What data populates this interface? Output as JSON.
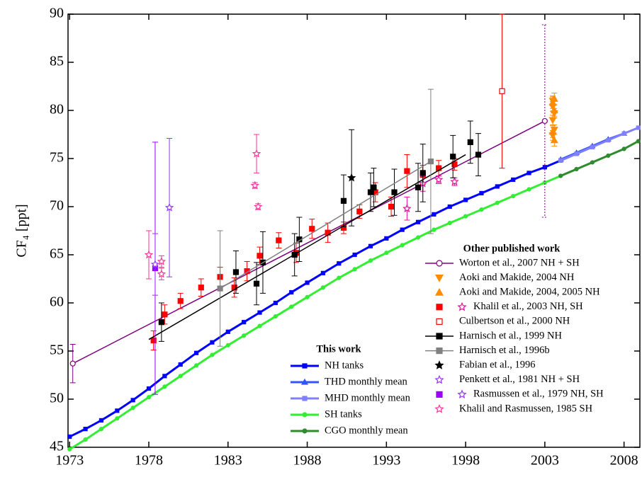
{
  "chart_data": {
    "type": "scatter",
    "ylabel": "CF₄ [ppt]",
    "xlim": [
      1972.9,
      2009.0
    ],
    "ylim": [
      45,
      90
    ],
    "xticks": [
      1973,
      1978,
      1983,
      1988,
      1993,
      1998,
      2003,
      2008
    ],
    "yticks": [
      45,
      50,
      55,
      60,
      65,
      70,
      75,
      80,
      85,
      90
    ],
    "groups": [
      {
        "title": "This work",
        "series": [
          {
            "name": "NH tanks",
            "color": "#0000ff",
            "marker": "square",
            "line": true,
            "x": [
              1973,
              1974,
              1975,
              1976,
              1977,
              1978,
              1979,
              1980,
              1981,
              1982,
              1983,
              1984,
              1985,
              1986,
              1987,
              1988,
              1989,
              1990,
              1991,
              1992,
              1993,
              1994,
              1995,
              1996,
              1997,
              1998,
              1999,
              2000,
              2001,
              2002,
              2003,
              2004,
              2005,
              2006
            ],
            "y": [
              46.1,
              46.9,
              47.8,
              48.8,
              49.9,
              51.1,
              52.4,
              53.6,
              54.8,
              55.9,
              57.0,
              58.0,
              59.0,
              60.0,
              61.1,
              62.1,
              63.1,
              64.1,
              65.0,
              65.9,
              66.7,
              67.6,
              68.4,
              69.2,
              70.0,
              70.7,
              71.4,
              72.1,
              72.8,
              73.5,
              74.1,
              74.8,
              75.5,
              76.2
            ]
          },
          {
            "name": "THD monthly mean",
            "color": "#3355ff",
            "marker": "triangle-up",
            "line": true,
            "x": [
              2004,
              2005,
              2006,
              2007,
              2008
            ],
            "y": [
              74.9,
              75.6,
              76.3,
              77.0,
              77.6
            ]
          },
          {
            "name": "MHD monthly mean",
            "color": "#8080ff",
            "marker": "square",
            "line": true,
            "x": [
              2004,
              2005,
              2006,
              2007,
              2008,
              2008.9
            ],
            "y": [
              74.8,
              75.5,
              76.2,
              76.9,
              77.6,
              78.2
            ]
          },
          {
            "name": "SH tanks",
            "color": "#33ee33",
            "marker": "circle",
            "line": true,
            "x": [
              1973,
              1974,
              1975,
              1976,
              1977,
              1978,
              1979,
              1980,
              1981,
              1982,
              1983,
              1984,
              1985,
              1986,
              1987,
              1988,
              1989,
              1990,
              1991,
              1992,
              1993,
              1994,
              1995,
              1996,
              1997,
              1998,
              1999,
              2000,
              2001,
              2002,
              2003,
              2004,
              2005
            ],
            "y": [
              44.8,
              45.8,
              46.9,
              48.0,
              49.1,
              50.2,
              51.3,
              52.4,
              53.5,
              54.6,
              55.6,
              56.6,
              57.6,
              58.6,
              59.6,
              60.6,
              61.6,
              62.6,
              63.5,
              64.4,
              65.2,
              66.0,
              66.8,
              67.6,
              68.3,
              69.0,
              69.7,
              70.4,
              71.1,
              71.8,
              72.5,
              73.2,
              73.9
            ]
          },
          {
            "name": "CGO monthly mean",
            "color": "#2e8b2e",
            "marker": "circle",
            "line": true,
            "x": [
              2004,
              2005,
              2006,
              2007,
              2008,
              2008.9
            ],
            "y": [
              73.2,
              73.9,
              74.6,
              75.3,
              76.0,
              76.8
            ]
          }
        ]
      },
      {
        "title": "Other published work",
        "series": [
          {
            "name": "Worton et al., 2007 NH + SH",
            "color": "#800080",
            "marker": "open-circle",
            "line": true,
            "x": [
              1973.2,
              2003.0
            ],
            "y": [
              53.7,
              78.9
            ],
            "err": [
              2,
              10
            ]
          },
          {
            "name": "Aoki and Makide, 2004 NH",
            "color": "#ff8c00",
            "marker": "triangle-down",
            "x": [
              2003.5,
              2003.5,
              2003.6,
              2003.5,
              2003.6,
              2003.5
            ],
            "y": [
              81.0,
              80.4,
              79.7,
              79.0,
              78.0,
              77.4
            ],
            "err": [
              0.5,
              0.5,
              0.5,
              0.5,
              0.5,
              0.5
            ]
          },
          {
            "name": "Aoki and Makide, 2004, 2005 NH",
            "color": "#ff8c00",
            "marker": "triangle-up",
            "x": [
              2003.6,
              2003.5,
              2003.6,
              2003.5,
              2003.6
            ],
            "y": [
              81.2,
              80.8,
              80.0,
              77.8,
              76.9
            ],
            "err": [
              0.6,
              0.6,
              0.6,
              0.6,
              0.6
            ]
          },
          {
            "name": "Khalil et al., 2003 NH, SH",
            "color": "#ff0000",
            "marker": "square",
            "x": [
              1978.3,
              1979.0,
              1980.0,
              1981.3,
              1982.5,
              1983.4,
              1984.2,
              1985.0,
              1986.2,
              1987.3,
              1988.3,
              1989.3,
              1990.3,
              1991.3,
              1992.3,
              1993.3,
              1994.3,
              1995.3,
              1996.3,
              1997.3
            ],
            "y": [
              56.1,
              58.8,
              60.2,
              61.6,
              62.7,
              61.6,
              63.3,
              64.9,
              66.5,
              65.2,
              67.7,
              67.3,
              67.8,
              69.5,
              71.5,
              70.0,
              73.7,
              73.3,
              74.0,
              74.4
            ],
            "err": [
              1,
              1,
              0.8,
              0.9,
              1,
              1,
              1,
              0.9,
              0.8,
              1,
              1,
              1,
              0.6,
              0.7,
              1,
              1,
              1.7,
              1,
              0.8,
              0.6
            ]
          },
          {
            "color": "#e0109a",
            "marker": "open-star",
            "x": [
              1994.3,
              1995.3,
              1996.3,
              1997.3
            ],
            "y": [
              69.8,
              72.4,
              72.8,
              72.6
            ],
            "err": [
              1.2,
              0.8,
              0.4,
              0.4
            ]
          },
          {
            "name": "Culbertson et al., 2000 NH",
            "color": "#ff0000",
            "marker": "open-square",
            "x": [
              2000.3
            ],
            "y": [
              82.0
            ],
            "err": [
              8
            ]
          },
          {
            "name": "Harnisch et al., 1999 NH",
            "color": "#000000",
            "marker": "square",
            "x": [
              1978.8,
              1983.5,
              1984.8,
              1985.2,
              1987.2,
              1987.5,
              1990.3,
              1992.0,
              1992.2,
              1993.5,
              1995.0,
              1995.3,
              1997.2,
              1998.3,
              1998.8
            ],
            "y": [
              58.0,
              63.2,
              62.0,
              64.2,
              65.0,
              66.6,
              70.6,
              71.5,
              72.0,
              71.5,
              72.0,
              73.5,
              75.2,
              76.7,
              75.4
            ],
            "err": [
              2,
              2.2,
              2.2,
              3.2,
              2.2,
              2.3,
              2.7,
              2,
              2,
              2.4,
              2.5,
              3,
              2.2,
              2.2,
              2.2
            ],
            "fit_x": [
              1978.0,
              1998.0
            ],
            "fit_y": [
              56.2,
              75.4
            ]
          },
          {
            "name": "Harnisch et al., 1996b",
            "color": "#808080",
            "marker": "square",
            "x": [
              1982.5,
              1995.8
            ],
            "y": [
              61.5,
              74.7
            ],
            "err": [
              6,
              7.5
            ],
            "fit_x": [
              1982.5,
              1995.8
            ],
            "fit_y": [
              61.5,
              74.7
            ]
          },
          {
            "name": "Fabian et al., 1996",
            "color": "#000000",
            "marker": "star",
            "x": [
              1990.8
            ],
            "y": [
              73.0
            ],
            "err": [
              5
            ]
          },
          {
            "name": "Penkett et al., 1981 NH + SH",
            "color": "#9933ff",
            "marker": "open-star",
            "x": [
              1979.3
            ],
            "y": [
              69.9
            ],
            "err": [
              7.2
            ]
          },
          {
            "name": "Rasmussen et al., 1979 NH, SH",
            "color": "#9900ff",
            "marker": "square",
            "x": [
              1978.4
            ],
            "y": [
              63.6
            ],
            "err": [
              13.1
            ]
          },
          {
            "color": "#9933ff",
            "marker": "open-star",
            "x": [
              1978.4
            ],
            "y": [
              64.0
            ],
            "err": [
              3.2
            ]
          },
          {
            "name": "Khalil and Rasmussen, 1985 SH",
            "color": "#ff3399",
            "marker": "open-star",
            "x": [
              1978.0,
              1978.8,
              1978.8,
              1984.8,
              1984.7,
              1984.9
            ],
            "y": [
              65.0,
              64.3,
              63.0,
              75.5,
              72.2,
              70.0
            ],
            "err": [
              2.5,
              0.6,
              0.6,
              2,
              0.3,
              0.3
            ]
          }
        ]
      }
    ]
  }
}
